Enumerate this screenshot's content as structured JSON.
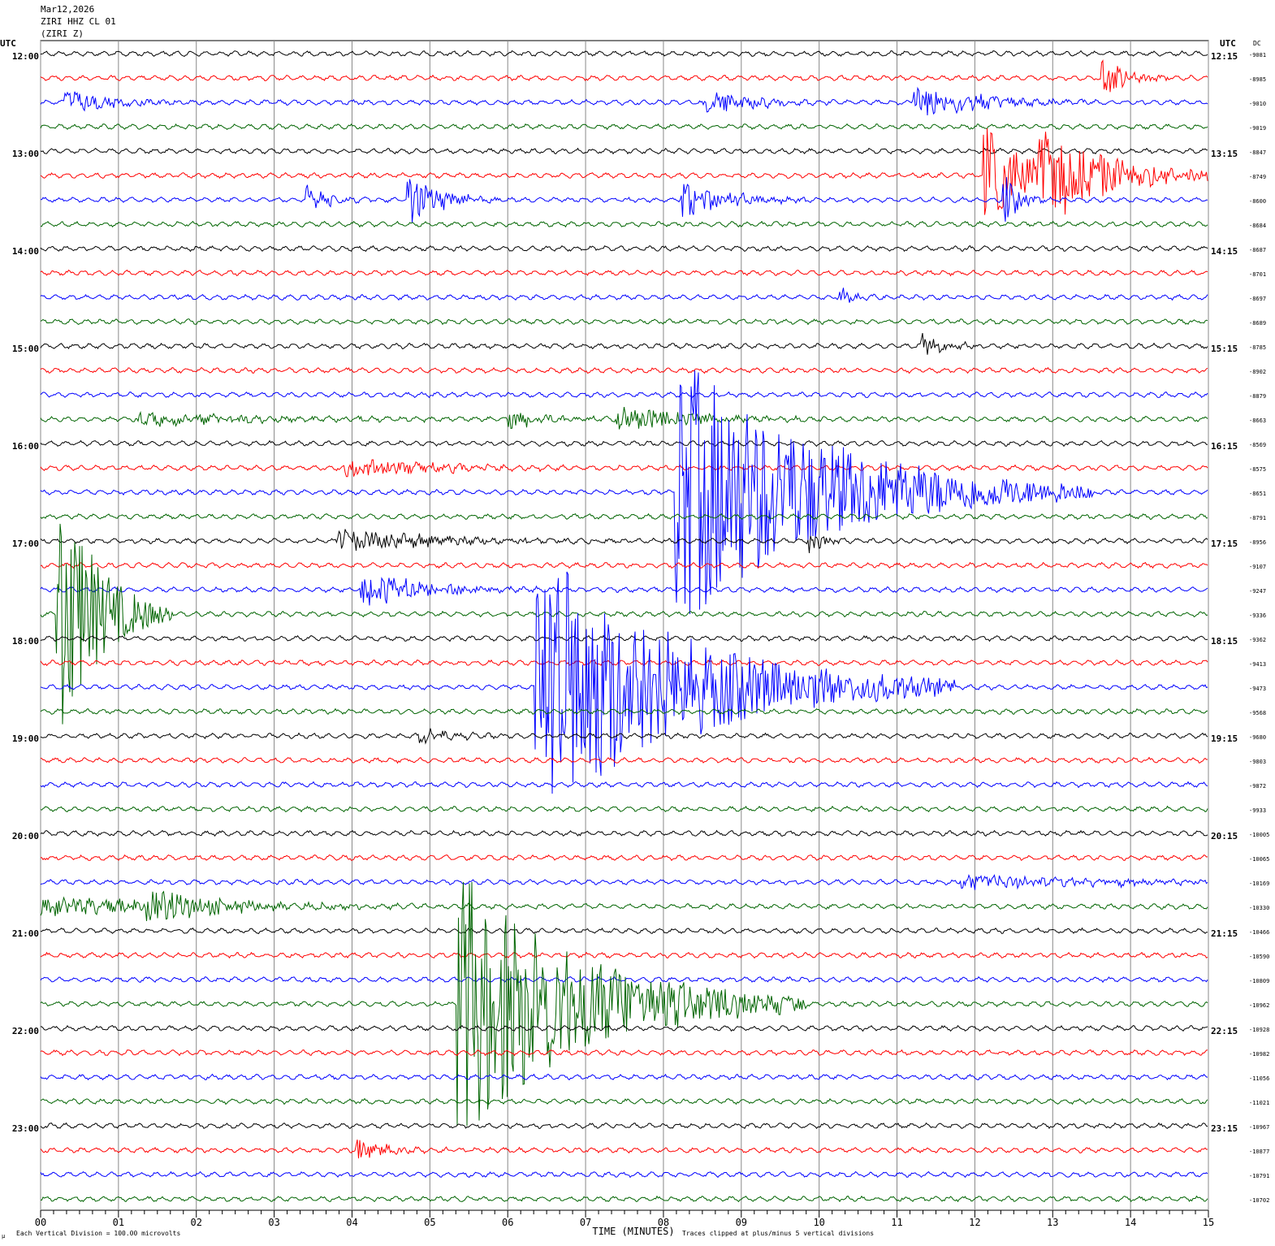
{
  "header": {
    "date": "Mar12,2026",
    "station": "ZIRI HHZ CL 01",
    "component": "(ZIRI Z)"
  },
  "chart_data": {
    "type": "line",
    "title": "ZIRI HHZ CL 01 helicorder",
    "xlabel": "TIME (MINUTES)",
    "left_axis_label": "UTC",
    "right_axis_label": "UTC",
    "dc_label": "DC",
    "xlim": [
      0,
      15
    ],
    "x_ticks": [
      "00",
      "01",
      "02",
      "03",
      "04",
      "05",
      "06",
      "07",
      "08",
      "09",
      "10",
      "11",
      "12",
      "13",
      "14",
      "15"
    ],
    "left_hour_labels": [
      "12:00",
      "13:00",
      "14:00",
      "15:00",
      "16:00",
      "17:00",
      "18:00",
      "19:00",
      "20:00",
      "21:00",
      "22:00",
      "23:00"
    ],
    "right_hour_labels": [
      "12:15",
      "13:15",
      "14:15",
      "15:15",
      "16:15",
      "17:15",
      "18:15",
      "19:15",
      "20:15",
      "21:15",
      "22:15",
      "23:15"
    ],
    "trace_colors": [
      "#000000",
      "#ff0000",
      "#0000ff",
      "#006400"
    ],
    "dc_offsets": [
      -9081,
      -8985,
      -9010,
      -9019,
      -8847,
      -8749,
      -8600,
      -8684,
      -8687,
      -8701,
      -8697,
      -8689,
      -8785,
      -8902,
      -8879,
      -8663,
      -8569,
      -8575,
      -8651,
      -8791,
      -8956,
      -9107,
      -9247,
      -9336,
      -9362,
      -9413,
      -9473,
      -9568,
      -9680,
      -9803,
      -9872,
      -9933,
      -10005,
      -10065,
      -10169,
      -10330,
      -10466,
      -10590,
      -10809,
      -10962,
      -10928,
      -10982,
      -11056,
      -11021,
      -10967,
      -10877,
      -10791,
      -10702
    ],
    "events": [
      {
        "trace": 1,
        "minute": 13.6,
        "amp": 1.0,
        "dur": 0.3
      },
      {
        "trace": 2,
        "minute": 0.3,
        "amp": 0.6,
        "dur": 0.5
      },
      {
        "trace": 2,
        "minute": 8.5,
        "amp": 0.6,
        "dur": 0.6
      },
      {
        "trace": 2,
        "minute": 11.2,
        "amp": 0.8,
        "dur": 0.8
      },
      {
        "trace": 5,
        "minute": 12.1,
        "amp": 2.2,
        "dur": 0.6
      },
      {
        "trace": 5,
        "minute": 12.8,
        "amp": 1.8,
        "dur": 1.0
      },
      {
        "trace": 6,
        "minute": 3.4,
        "amp": 0.6,
        "dur": 0.3
      },
      {
        "trace": 6,
        "minute": 4.7,
        "amp": 1.2,
        "dur": 0.4
      },
      {
        "trace": 6,
        "minute": 8.2,
        "amp": 0.8,
        "dur": 0.6
      },
      {
        "trace": 6,
        "minute": 12.35,
        "amp": 1.2,
        "dur": 0.2
      },
      {
        "trace": 10,
        "minute": 10.25,
        "amp": 0.4,
        "dur": 0.2
      },
      {
        "trace": 12,
        "minute": 11.3,
        "amp": 0.5,
        "dur": 0.3
      },
      {
        "trace": 15,
        "minute": 1.2,
        "amp": 0.3,
        "dur": 1.5
      },
      {
        "trace": 15,
        "minute": 6.0,
        "amp": 0.4,
        "dur": 0.5
      },
      {
        "trace": 15,
        "minute": 7.4,
        "amp": 0.6,
        "dur": 0.9
      },
      {
        "trace": 17,
        "minute": 3.9,
        "amp": 0.4,
        "dur": 1.2
      },
      {
        "trace": 18,
        "minute": 8.15,
        "amp": 6.0,
        "dur": 1.8
      },
      {
        "trace": 20,
        "minute": 3.8,
        "amp": 0.5,
        "dur": 1.3
      },
      {
        "trace": 20,
        "minute": 9.85,
        "amp": 0.6,
        "dur": 0.2
      },
      {
        "trace": 22,
        "minute": 4.1,
        "amp": 0.8,
        "dur": 0.8
      },
      {
        "trace": 23,
        "minute": 0.2,
        "amp": 6.0,
        "dur": 0.5
      },
      {
        "trace": 26,
        "minute": 6.35,
        "amp": 6.0,
        "dur": 1.8
      },
      {
        "trace": 28,
        "minute": 4.85,
        "amp": 0.4,
        "dur": 0.4
      },
      {
        "trace": 35,
        "minute": 0.0,
        "amp": 0.4,
        "dur": 2.4
      },
      {
        "trace": 35,
        "minute": 1.35,
        "amp": 1.0,
        "dur": 0.6
      },
      {
        "trace": 34,
        "minute": 11.8,
        "amp": 0.3,
        "dur": 2.0
      },
      {
        "trace": 39,
        "minute": 5.35,
        "amp": 6.0,
        "dur": 1.5
      },
      {
        "trace": 45,
        "minute": 4.05,
        "amp": 0.5,
        "dur": 0.4
      }
    ],
    "grid": "vertical"
  },
  "footer": {
    "scale_note": "Each Vertical Division =  100.00 microvolts",
    "clip_note": "Traces clipped at plus/minus 5 vertical divisions",
    "corner_mark": "µ"
  }
}
